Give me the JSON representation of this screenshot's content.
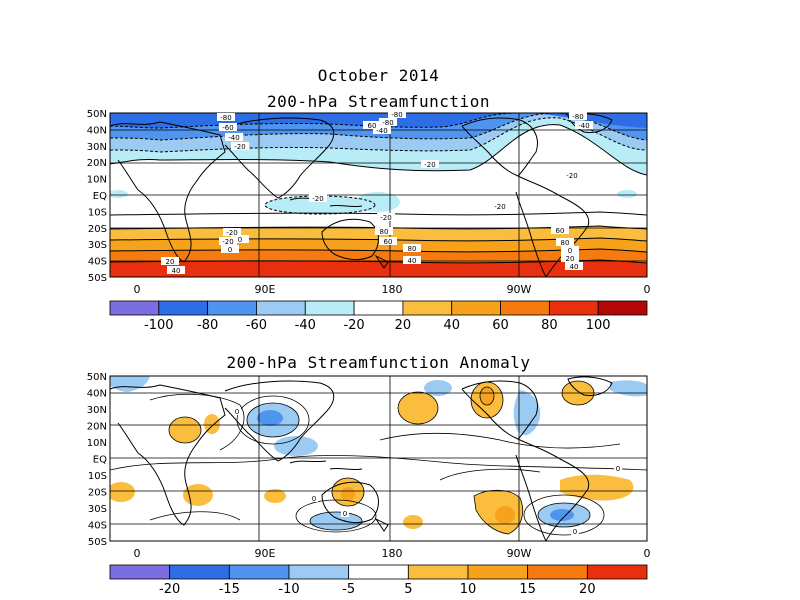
{
  "header": {
    "period": "October 2014",
    "panel1_title": "200-hPa Streamfunction",
    "panel2_title": "200-hPa Streamfunction Anomaly"
  },
  "axes": {
    "lat_ticks": [
      "50N",
      "40N",
      "30N",
      "20N",
      "10N",
      "EQ",
      "10S",
      "20S",
      "30S",
      "40S",
      "50S"
    ],
    "lon_ticks": [
      "0",
      "90E",
      "180",
      "90W",
      "0"
    ]
  },
  "panel1": {
    "colorbar": {
      "colors": [
        "#7b6ee0",
        "#2d6ee6",
        "#4f95ef",
        "#9bcbf3",
        "#b8ecf6",
        "#ffffff",
        "#fbbd3e",
        "#f7a21c",
        "#f57a0f",
        "#e8300e",
        "#b30606"
      ],
      "labels": [
        "-100",
        "-80",
        "-60",
        "-40",
        "-20",
        "20",
        "40",
        "60",
        "80",
        "100"
      ]
    },
    "contour_labels": [
      "-80",
      "-60",
      "-40",
      "-20",
      "-80",
      "-80",
      "-40",
      "-20",
      "-80",
      "-40",
      "-20",
      "-20",
      "-20",
      "-20",
      "-20",
      "0",
      "-20",
      "0",
      "20",
      "40",
      "60",
      "80",
      "40",
      "60",
      "80",
      "0",
      "20",
      "40",
      "60",
      "80"
    ]
  },
  "panel2": {
    "colorbar": {
      "colors": [
        "#7b6ee0",
        "#2d6ee6",
        "#4f95ef",
        "#9bcbf3",
        "#ffffff",
        "#fbbd3e",
        "#f7a21c",
        "#f57a0f",
        "#e8300e"
      ],
      "labels": [
        "-20",
        "-15",
        "-10",
        "-5",
        "5",
        "10",
        "15",
        "20"
      ]
    },
    "contour_labels": [
      "0",
      "0",
      "0",
      "0",
      "0"
    ]
  }
}
